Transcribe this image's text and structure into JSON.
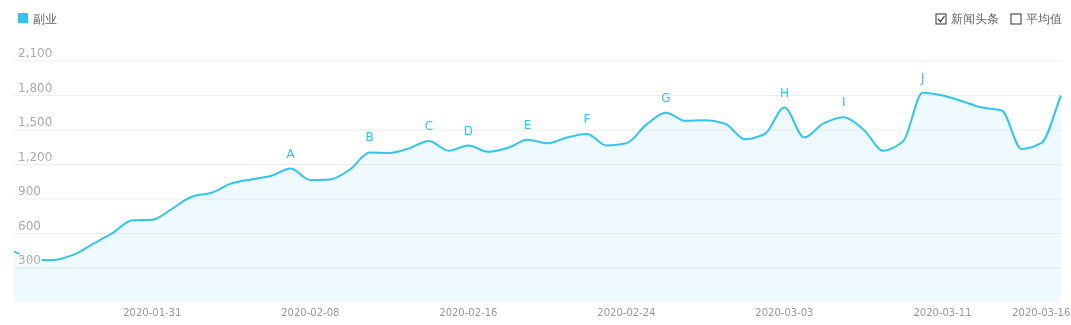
{
  "chart_data": {
    "type": "area",
    "x": [
      "2020-01-24",
      "2020-01-25",
      "2020-01-26",
      "2020-01-27",
      "2020-01-28",
      "2020-01-29",
      "2020-01-30",
      "2020-01-31",
      "2020-02-01",
      "2020-02-02",
      "2020-02-03",
      "2020-02-04",
      "2020-02-05",
      "2020-02-06",
      "2020-02-07",
      "2020-02-08",
      "2020-02-09",
      "2020-02-10",
      "2020-02-11",
      "2020-02-12",
      "2020-02-13",
      "2020-02-14",
      "2020-02-15",
      "2020-02-16",
      "2020-02-17",
      "2020-02-18",
      "2020-02-19",
      "2020-02-20",
      "2020-02-21",
      "2020-02-22",
      "2020-02-23",
      "2020-02-24",
      "2020-02-25",
      "2020-02-26",
      "2020-02-27",
      "2020-02-28",
      "2020-02-29",
      "2020-03-01",
      "2020-03-02",
      "2020-03-03",
      "2020-03-04",
      "2020-03-05",
      "2020-03-06",
      "2020-03-07",
      "2020-03-08",
      "2020-03-09",
      "2020-03-10",
      "2020-03-11",
      "2020-03-12",
      "2020-03-13",
      "2020-03-14",
      "2020-03-15",
      "2020-03-16",
      "2020-03-17"
    ],
    "series": [
      {
        "name": "副业",
        "color": "#33c5f0",
        "values": [
          445,
          370,
          370,
          415,
          510,
          605,
          715,
          720,
          815,
          920,
          955,
          1035,
          1070,
          1100,
          1165,
          1065,
          1070,
          1155,
          1305,
          1300,
          1340,
          1405,
          1320,
          1365,
          1310,
          1345,
          1415,
          1385,
          1435,
          1465,
          1365,
          1385,
          1545,
          1650,
          1580,
          1585,
          1555,
          1420,
          1465,
          1695,
          1435,
          1560,
          1610,
          1505,
          1320,
          1400,
          1825,
          1800,
          1750,
          1695,
          1670,
          1335,
          1385,
          1800
        ]
      }
    ],
    "xlim": [
      "2020-01-24",
      "2020-03-17"
    ],
    "xticks": [
      "2020-01-31",
      "2020-02-08",
      "2020-02-16",
      "2020-02-24",
      "2020-03-03",
      "2020-03-11",
      "2020-03-16"
    ],
    "ylim": [
      0,
      2100
    ],
    "yticks": [
      300,
      600,
      900,
      {
        "value": 1200,
        "label": "1,200"
      },
      {
        "value": 1500,
        "label": "1,500"
      },
      {
        "value": 1800,
        "label": "1,800"
      },
      {
        "value": 2100,
        "label": "2,100"
      }
    ],
    "grid": "y",
    "legend": "top left",
    "annotations": [
      {
        "text": "A",
        "x": "2020-02-07",
        "y": 1165
      },
      {
        "text": "B",
        "x": "2020-02-11",
        "y": 1305
      },
      {
        "text": "C",
        "x": "2020-02-14",
        "y": 1405
      },
      {
        "text": "D",
        "x": "2020-02-16",
        "y": 1365
      },
      {
        "text": "E",
        "x": "2020-02-19",
        "y": 1415
      },
      {
        "text": "F",
        "x": "2020-02-22",
        "y": 1465
      },
      {
        "text": "G",
        "x": "2020-02-26",
        "y": 1650
      },
      {
        "text": "H",
        "x": "2020-03-03",
        "y": 1695
      },
      {
        "text": "I",
        "x": "2020-03-06",
        "y": 1610
      },
      {
        "text": "J",
        "x": "2020-03-10",
        "y": 1825
      },
      "新闻头条",
      "平均值"
    ]
  }
}
